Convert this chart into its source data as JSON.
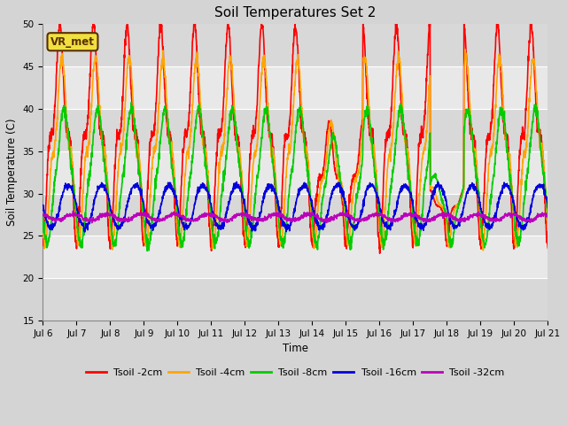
{
  "title": "Soil Temperatures Set 2",
  "xlabel": "Time",
  "ylabel": "Soil Temperature (C)",
  "ylim": [
    15,
    50
  ],
  "xlim_days": [
    0,
    15
  ],
  "x_tick_labels": [
    "Jul 6",
    "Jul 7",
    "Jul 8",
    "Jul 9",
    "Jul 10",
    "Jul 11",
    "Jul 12",
    "Jul 13",
    "Jul 14",
    "Jul 15",
    "Jul 16",
    "Jul 17",
    "Jul 18",
    "Jul 19",
    "Jul 20",
    "Jul 21"
  ],
  "annotation_text": "VR_met",
  "background_color": "#d4d4d4",
  "plot_bg_color": "#e0e0e0",
  "series": [
    {
      "label": "Tsoil -2cm",
      "color": "#ff0000"
    },
    {
      "label": "Tsoil -4cm",
      "color": "#ffa500"
    },
    {
      "label": "Tsoil -8cm",
      "color": "#00cc00"
    },
    {
      "label": "Tsoil -16cm",
      "color": "#0000dd"
    },
    {
      "label": "Tsoil -32cm",
      "color": "#bb00bb"
    }
  ]
}
